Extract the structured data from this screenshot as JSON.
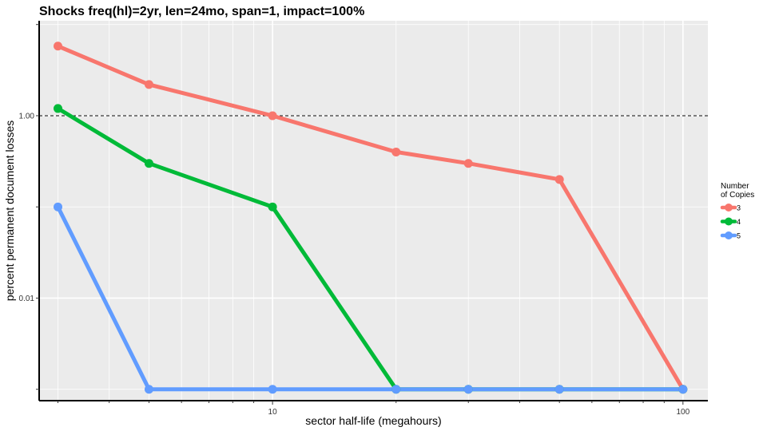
{
  "chart_data": {
    "type": "line",
    "title": "Shocks freq(hl)=2yr, len=24mo, span=1, impact=100%",
    "xlabel": "sector half-life (megahours)",
    "ylabel": "percent permanent document losses",
    "x_scale": "log",
    "y_scale": "log",
    "xlim": [
      2.7,
      115
    ],
    "ylim": [
      0.00075,
      11
    ],
    "x_ticks": [
      {
        "value": 10,
        "label": "10"
      },
      {
        "value": 100,
        "label": "100"
      }
    ],
    "y_ticks": [
      {
        "value": 1.0,
        "label": "1.00"
      },
      {
        "value": 0.01,
        "label": "0.01"
      }
    ],
    "reference_line": {
      "y": 1.0,
      "style": "dashed",
      "color": "#000000"
    },
    "x": [
      3,
      5,
      10,
      20,
      30,
      50,
      100
    ],
    "series": [
      {
        "name": "3",
        "color": "#F8766D",
        "values": [
          5.8,
          2.2,
          1.0,
          0.4,
          0.3,
          0.2,
          0.001
        ]
      },
      {
        "name": "4",
        "color": "#00BA38",
        "values": [
          1.2,
          0.3,
          0.1,
          0.001,
          0.001,
          0.001,
          0.001
        ]
      },
      {
        "name": "5",
        "color": "#619CFF",
        "values": [
          0.1,
          0.001,
          0.001,
          0.001,
          0.001,
          0.001,
          0.001
        ]
      }
    ],
    "legend": {
      "title_line1": "Number",
      "title_line2": "of Copies",
      "placement": "right"
    },
    "grid": true,
    "panel_color": "#EBEBEB",
    "grid_color": "#FFFFFF"
  }
}
